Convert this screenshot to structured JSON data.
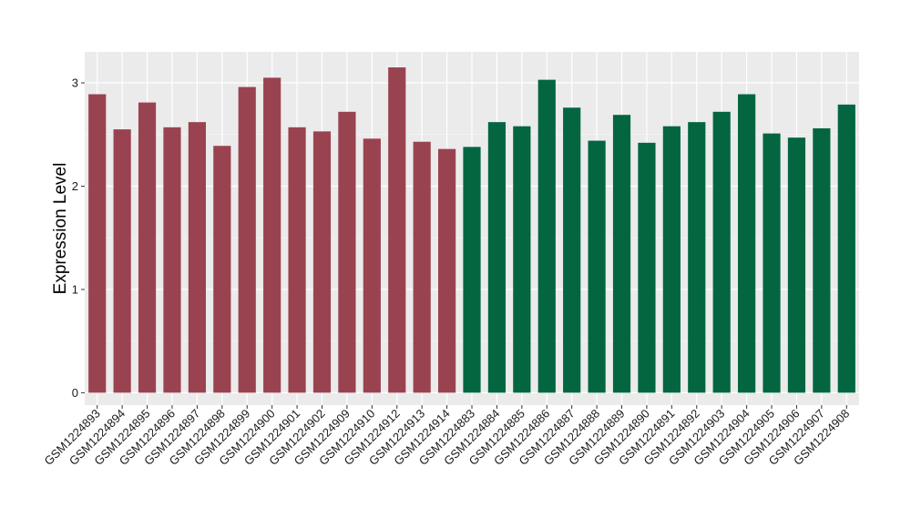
{
  "chart_data": {
    "type": "bar",
    "xlabel": "",
    "ylabel": "Expression Level",
    "ylim": [
      -0.12,
      3.3
    ],
    "yticks": [
      0,
      1,
      2,
      3
    ],
    "grid": true,
    "background": "#EBEBEB",
    "categories": [
      "GSM1224893",
      "GSM1224894",
      "GSM1224895",
      "GSM1224896",
      "GSM1224897",
      "GSM1224898",
      "GSM1224899",
      "GSM1224900",
      "GSM1224901",
      "GSM1224902",
      "GSM1224909",
      "GSM1224910",
      "GSM1224912",
      "GSM1224913",
      "GSM1224914",
      "GSM1224883",
      "GSM1224884",
      "GSM1224885",
      "GSM1224886",
      "GSM1224887",
      "GSM1224888",
      "GSM1224889",
      "GSM1224890",
      "GSM1224891",
      "GSM1224892",
      "GSM1224903",
      "GSM1224904",
      "GSM1224905",
      "GSM1224906",
      "GSM1224907",
      "GSM1224908"
    ],
    "values": [
      2.89,
      2.55,
      2.81,
      2.57,
      2.62,
      2.39,
      2.96,
      3.05,
      2.57,
      2.53,
      2.72,
      2.46,
      3.15,
      2.43,
      2.36,
      2.38,
      2.62,
      2.58,
      3.03,
      2.76,
      2.44,
      2.69,
      2.42,
      2.58,
      2.62,
      2.72,
      2.89,
      2.51,
      2.47,
      2.56,
      2.79
    ],
    "groups": [
      {
        "color": "#9A4350",
        "count": 15
      },
      {
        "color": "#036641",
        "count": 16
      }
    ]
  }
}
